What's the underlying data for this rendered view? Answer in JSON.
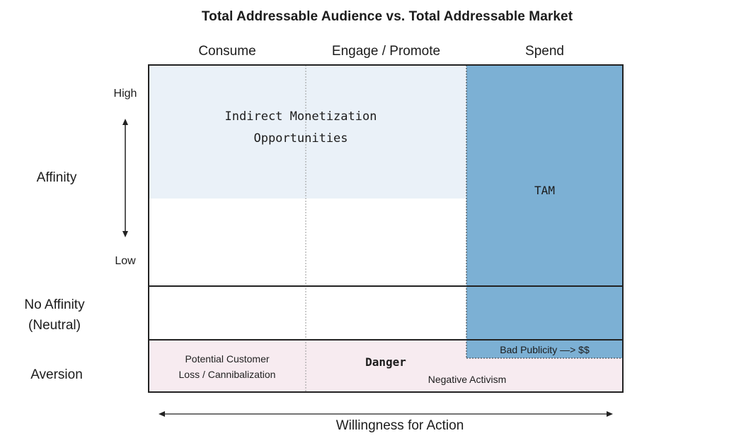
{
  "title": "Total Addressable Audience vs. Total Addressable Market",
  "columns": [
    "Consume",
    "Engage / Promote",
    "Spend"
  ],
  "rows": {
    "affinity": "Affinity",
    "high": "High",
    "low": "Low",
    "no_affinity_line1": "No Affinity",
    "no_affinity_line2": "(Neutral)",
    "aversion": "Aversion"
  },
  "regions": {
    "indirect_line1": "Indirect Monetization",
    "indirect_line2": "Opportunities",
    "tam": "TAM",
    "bad_publicity": "Bad Publicity —> $$",
    "potential_line1": "Potential Customer",
    "potential_line2": "Loss / Cannibalization",
    "danger": "Danger",
    "negative_activism": "Negative Activism"
  },
  "x_axis_label": "Willingness for Action",
  "colors": {
    "indirect_fill": "#eaf1f8",
    "tam_fill": "#7cb0d4",
    "aversion_fill": "#f7ebf0",
    "grid_line": "#222222"
  }
}
